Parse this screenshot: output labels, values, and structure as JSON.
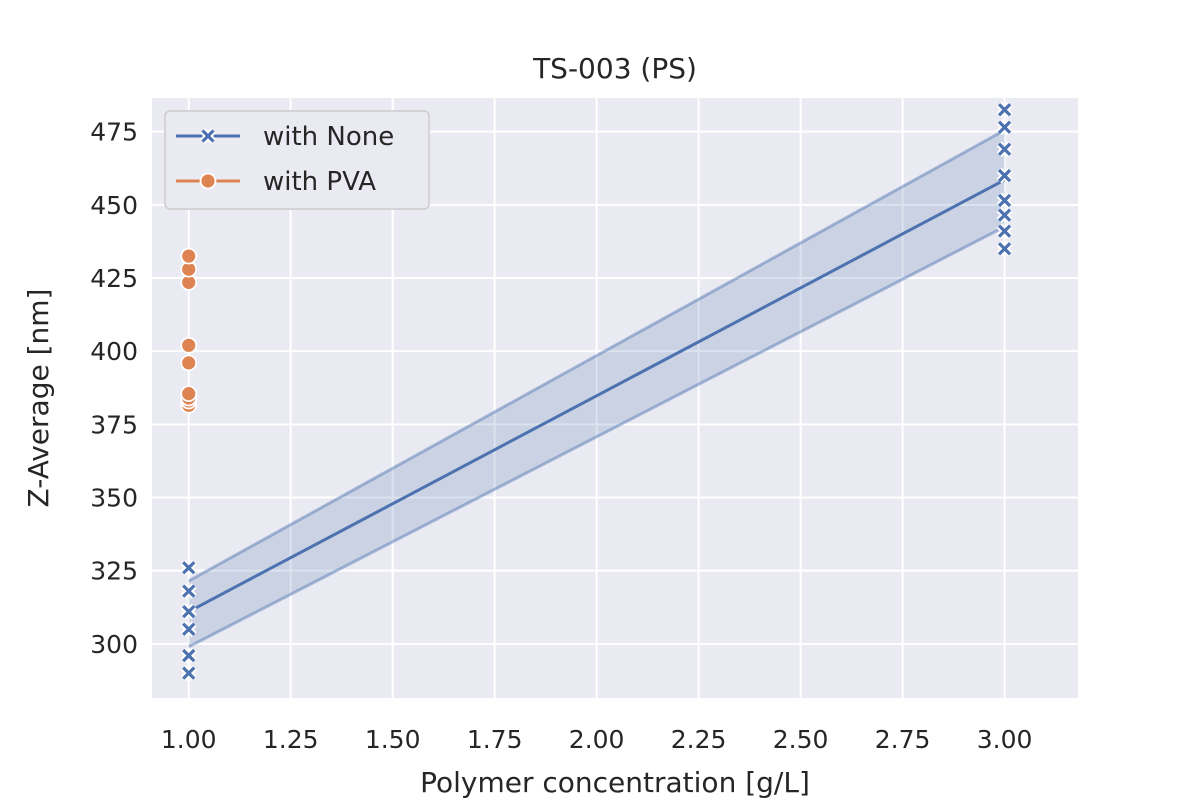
{
  "chart_data": {
    "type": "line",
    "title": "TS-003 (PS)",
    "xlabel": "Polymer concentration [g/L]",
    "ylabel": "Z-Average [nm]",
    "xlim": [
      0.91,
      3.18
    ],
    "ylim": [
      281.5,
      486.5
    ],
    "xticks": [
      1.0,
      1.25,
      1.5,
      1.75,
      2.0,
      2.25,
      2.5,
      2.75,
      3.0
    ],
    "xtick_labels": [
      "1.00",
      "1.25",
      "1.50",
      "1.75",
      "2.00",
      "2.25",
      "2.50",
      "2.75",
      "3.00"
    ],
    "yticks": [
      300,
      325,
      350,
      375,
      400,
      425,
      450,
      475
    ],
    "ytick_labels": [
      "300",
      "325",
      "350",
      "375",
      "400",
      "425",
      "450",
      "475"
    ],
    "grid": true,
    "legend_position": "top-left",
    "series": [
      {
        "name": "with None",
        "color": "#4c72b0",
        "marker": "x",
        "line": {
          "x": [
            1.0,
            3.0
          ],
          "y": [
            311,
            458.5
          ]
        },
        "band": {
          "x": [
            1.0,
            3.0
          ],
          "lower": [
            299,
            442.5
          ],
          "upper": [
            321.5,
            475.5
          ]
        },
        "points": [
          [
            1.0,
            290
          ],
          [
            1.0,
            296
          ],
          [
            1.0,
            305
          ],
          [
            1.0,
            311
          ],
          [
            1.0,
            318
          ],
          [
            1.0,
            326
          ],
          [
            3.0,
            435
          ],
          [
            3.0,
            441
          ],
          [
            3.0,
            446.5
          ],
          [
            3.0,
            451.5
          ],
          [
            3.0,
            460
          ],
          [
            3.0,
            469
          ],
          [
            3.0,
            476.5
          ],
          [
            3.0,
            482.5
          ]
        ]
      },
      {
        "name": "with PVA",
        "color": "#dd8452",
        "marker": "o",
        "line": {
          "x": [
            1.0
          ],
          "y": [
            404
          ]
        },
        "points": [
          [
            1.0,
            381.5
          ],
          [
            1.0,
            383
          ],
          [
            1.0,
            384
          ],
          [
            1.0,
            385.5
          ],
          [
            1.0,
            396
          ],
          [
            1.0,
            402
          ],
          [
            1.0,
            423.5
          ],
          [
            1.0,
            428
          ],
          [
            1.0,
            432.5
          ]
        ]
      }
    ]
  }
}
